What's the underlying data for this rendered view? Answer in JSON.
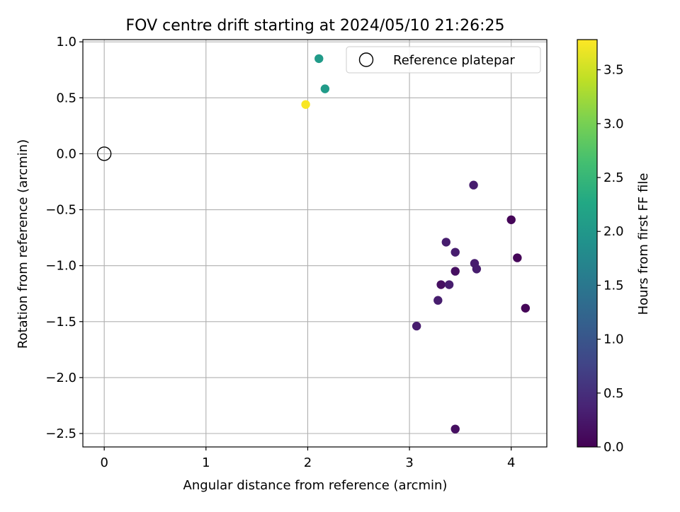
{
  "chart_data": {
    "type": "scatter",
    "title": "FOV centre drift starting at 2024/05/10 21:26:25",
    "xlabel": "Angular distance from reference (arcmin)",
    "ylabel": "Rotation from reference (arcmin)",
    "xlim": [
      -0.21,
      4.35
    ],
    "ylim": [
      -2.62,
      1.02
    ],
    "xticks": [
      0,
      1,
      2,
      3,
      4
    ],
    "xtick_labels": [
      "0",
      "1",
      "2",
      "3",
      "4"
    ],
    "yticks": [
      1.0,
      0.5,
      0.0,
      -0.5,
      -1.0,
      -1.5,
      -2.0,
      -2.5
    ],
    "ytick_labels": [
      "1.0",
      "0.5",
      "0.0",
      "−0.5",
      "−1.0",
      "−1.5",
      "−2.0",
      "−2.5"
    ],
    "grid": true,
    "legend": {
      "position": "top-right",
      "entries": [
        "Reference platepar"
      ]
    },
    "reference": {
      "x": 0.0,
      "y": 0.0
    },
    "colorbar": {
      "label": "Hours from first FF file",
      "range": [
        0.0,
        3.78
      ],
      "ticks": [
        0.0,
        0.5,
        1.0,
        1.5,
        2.0,
        2.5,
        3.0,
        3.5
      ],
      "tick_labels": [
        "0.0",
        "0.5",
        "1.0",
        "1.5",
        "2.0",
        "2.5",
        "3.0",
        "3.5"
      ],
      "colormap": "viridis"
    },
    "points": [
      {
        "x": 1.98,
        "y": 0.44,
        "hours": 3.75
      },
      {
        "x": 2.11,
        "y": 0.85,
        "hours": 2.05
      },
      {
        "x": 2.17,
        "y": 0.58,
        "hours": 2.05
      },
      {
        "x": 3.63,
        "y": -0.28,
        "hours": 0.3
      },
      {
        "x": 4.0,
        "y": -0.59,
        "hours": 0.05
      },
      {
        "x": 3.36,
        "y": -0.79,
        "hours": 0.3
      },
      {
        "x": 3.45,
        "y": -0.88,
        "hours": 0.3
      },
      {
        "x": 3.64,
        "y": -0.98,
        "hours": 0.3
      },
      {
        "x": 4.06,
        "y": -0.93,
        "hours": 0.05
      },
      {
        "x": 3.45,
        "y": -1.05,
        "hours": 0.15
      },
      {
        "x": 3.66,
        "y": -1.03,
        "hours": 0.3
      },
      {
        "x": 3.31,
        "y": -1.17,
        "hours": 0.15
      },
      {
        "x": 3.39,
        "y": -1.17,
        "hours": 0.3
      },
      {
        "x": 3.28,
        "y": -1.31,
        "hours": 0.3
      },
      {
        "x": 4.14,
        "y": -1.38,
        "hours": 0.05
      },
      {
        "x": 3.07,
        "y": -1.54,
        "hours": 0.3
      },
      {
        "x": 3.45,
        "y": -2.46,
        "hours": 0.15
      }
    ]
  }
}
